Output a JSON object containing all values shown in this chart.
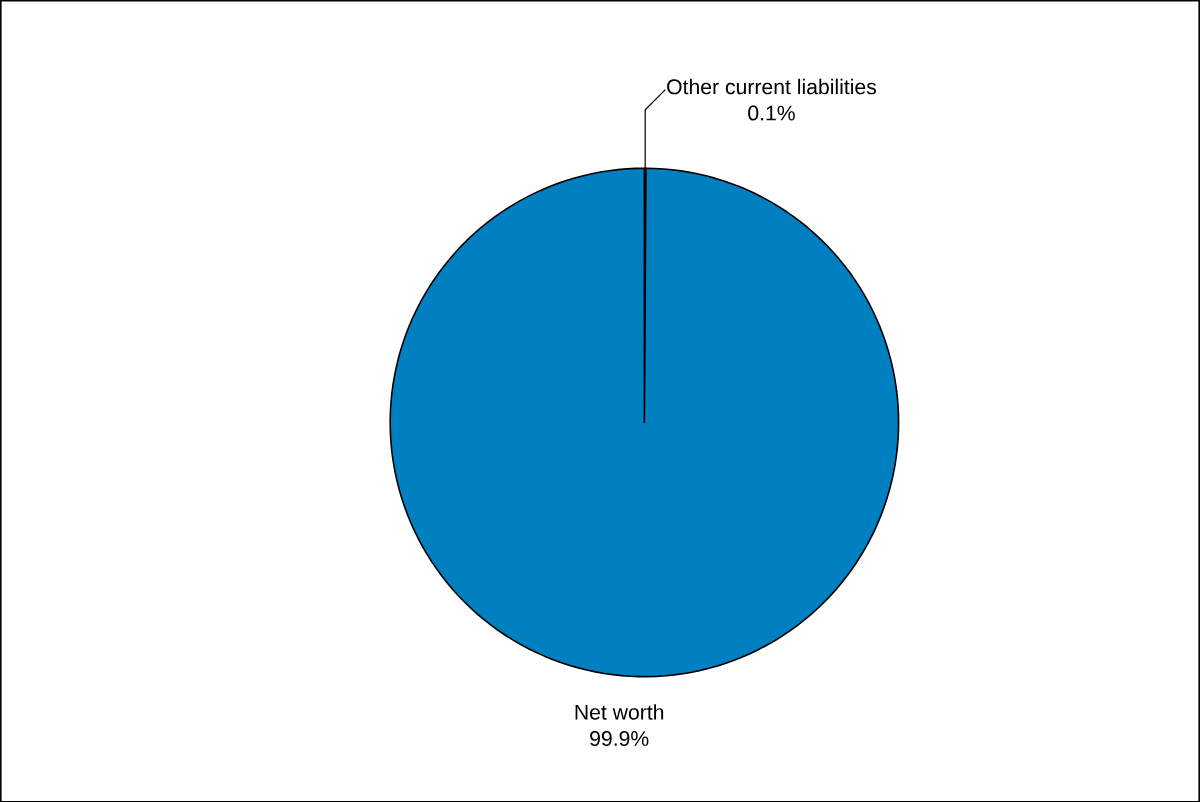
{
  "chart_data": {
    "type": "pie",
    "categories": [
      "Other current liabilities",
      "Net worth"
    ],
    "values": [
      0.1,
      99.9
    ],
    "colors": [
      "#000000",
      "#0080c0"
    ],
    "value_labels": [
      "0.1%",
      "99.9%"
    ]
  }
}
